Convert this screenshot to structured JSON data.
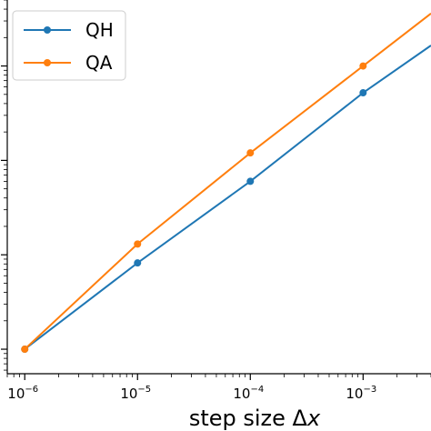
{
  "chart_data": {
    "type": "line",
    "x_scale": "log",
    "y_scale": "log",
    "xlabel_text": "step size Δ",
    "xlabel_var": "x",
    "ylabel": "",
    "title": "",
    "grid": false,
    "legend_position": "top-left",
    "x_ticks": [
      {
        "base": "10",
        "exp": "−6",
        "value": 1e-06
      },
      {
        "base": "10",
        "exp": "−5",
        "value": 1e-05
      },
      {
        "base": "10",
        "exp": "−4",
        "value": 0.0001
      },
      {
        "base": "10",
        "exp": "−3",
        "value": 0.001
      }
    ],
    "xlim": [
      7e-07,
      0.004
    ],
    "ylim": [
      0.55,
      5000
    ],
    "series": [
      {
        "name": "QH",
        "color": "#1f77b4",
        "x": [
          1e-06,
          1e-05,
          0.0001,
          0.001
        ],
        "y": [
          1.0,
          8.2,
          60,
          520
        ],
        "end_x": 0.004,
        "end_y": 1650
      },
      {
        "name": "QA",
        "color": "#ff7f0e",
        "x": [
          1e-06,
          1e-05,
          0.0001,
          0.001
        ],
        "y": [
          1.0,
          13,
          120,
          1000
        ],
        "end_x": 0.004,
        "end_y": 3600
      }
    ]
  }
}
